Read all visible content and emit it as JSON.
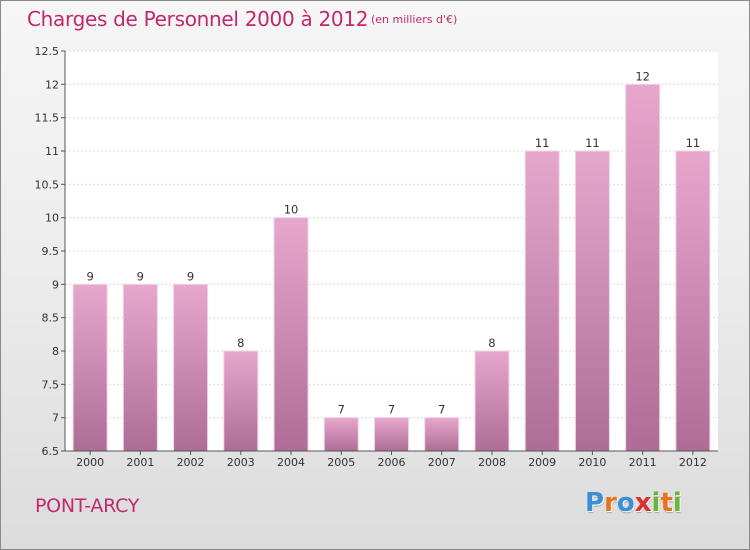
{
  "header": {
    "title": "Charges de Personnel 2000 à 2012",
    "subtitle": "(en milliers d'€)"
  },
  "footer": {
    "place": "PONT-ARCY",
    "logo_letters": [
      "P",
      "r",
      "o",
      "x",
      "i",
      "t",
      "i"
    ],
    "logo_colors": [
      "#3a8fd6",
      "#e8731c",
      "#3a8fd6",
      "#d8312e",
      "#6ab535",
      "#e8731c",
      "#6ab535"
    ]
  },
  "colors": {
    "title": "#c2286e",
    "bar_top": "#e7a7cd",
    "bar_bottom": "#ae6d96",
    "plot_bg": "#ffffff"
  },
  "chart_data": {
    "type": "bar",
    "title": "Charges de Personnel 2000 à 2012",
    "subtitle": "(en milliers d'€)",
    "xlabel": "",
    "ylabel": "",
    "categories": [
      "2000",
      "2001",
      "2002",
      "2003",
      "2004",
      "2005",
      "2006",
      "2007",
      "2008",
      "2009",
      "2010",
      "2011",
      "2012"
    ],
    "values": [
      9,
      9,
      9,
      8,
      10,
      7,
      7,
      7,
      8,
      11,
      11,
      12,
      11
    ],
    "value_labels": [
      "9",
      "9",
      "9",
      "8",
      "10",
      "7",
      "7",
      "7",
      "8",
      "11",
      "11",
      "12",
      "11"
    ],
    "ylim": [
      6.5,
      12.5
    ],
    "yticks": [
      6.5,
      7,
      7.5,
      8,
      8.5,
      9,
      9.5,
      10,
      10.5,
      11,
      11.5,
      12,
      12.5
    ],
    "ytick_labels": [
      "6.5",
      "7",
      "7.5",
      "8",
      "8.5",
      "9",
      "9.5",
      "10",
      "10.5",
      "11",
      "11.5",
      "12",
      "12.5"
    ],
    "grid": true
  }
}
